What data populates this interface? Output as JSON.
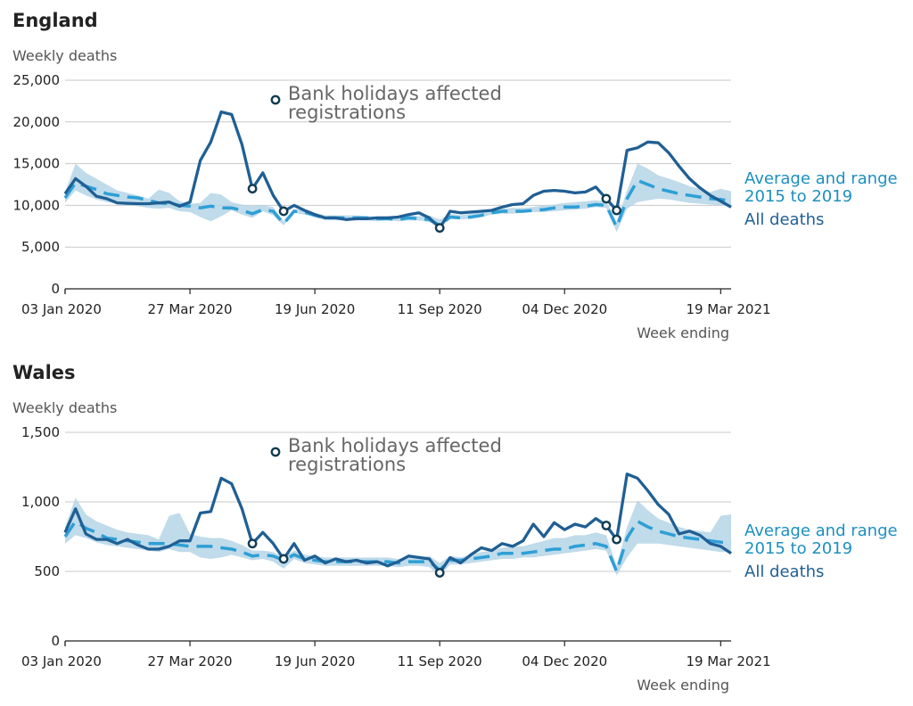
{
  "chart_data": [
    {
      "type": "line",
      "title": "England",
      "ylabel": "Weekly deaths",
      "xlabel": "Week ending",
      "ylim": [
        0,
        25000
      ],
      "yticks": [
        "0",
        "5,000",
        "10,000",
        "15,000",
        "20,000",
        "25,000"
      ],
      "ytick_values": [
        0,
        5000,
        10000,
        15000,
        20000,
        25000
      ],
      "xticks": [
        "03 Jan 2020",
        "27 Mar 2020",
        "19 Jun 2020",
        "11 Sep 2020",
        "04 Dec 2020",
        "19 Mar 2021"
      ],
      "xtick_weeks": [
        0,
        12,
        24,
        36,
        48,
        63
      ],
      "annotation": "Bank holidays affected registrations",
      "series": [
        {
          "name": "All deaths",
          "values": [
            11400,
            13200,
            12300,
            11100,
            10800,
            10300,
            10250,
            10200,
            10200,
            10300,
            10400,
            9900,
            10400,
            15400,
            17600,
            21200,
            20900,
            17300,
            12000,
            13900,
            11200,
            9300,
            10000,
            9400,
            8900,
            8500,
            8500,
            8300,
            8400,
            8400,
            8500,
            8500,
            8600,
            8900,
            9100,
            8500,
            7300,
            9300,
            9100,
            9200,
            9300,
            9400,
            9800,
            10100,
            10200,
            11200,
            11700,
            11800,
            11700,
            11500,
            11600,
            12200,
            10800,
            9400,
            16600,
            16900,
            17600,
            17500,
            16300,
            14700,
            13200,
            12100,
            11200,
            10500,
            9800
          ]
        },
        {
          "name": "Average and range 2015 to 2019",
          "values": [
            10900,
            12700,
            12300,
            11900,
            11400,
            11200,
            11000,
            10900,
            10600,
            10300,
            10200,
            10000,
            9900,
            9700,
            9900,
            9700,
            9700,
            9400,
            9000,
            9500,
            9300,
            7800,
            9300,
            9200,
            8800,
            8500,
            8500,
            8500,
            8500,
            8500,
            8400,
            8400,
            8300,
            8500,
            8400,
            8300,
            7600,
            8600,
            8500,
            8600,
            8800,
            9100,
            9300,
            9300,
            9300,
            9400,
            9500,
            9700,
            9800,
            9800,
            9900,
            10100,
            10000,
            7400,
            10800,
            13000,
            12500,
            12000,
            11700,
            11400,
            11200,
            11000,
            10800,
            10700,
            10500
          ],
          "range_low": [
            10300,
            11800,
            11200,
            10700,
            10400,
            10200,
            10000,
            9900,
            9700,
            9600,
            9700,
            9300,
            9200,
            8600,
            8100,
            8700,
            9400,
            8900,
            8500,
            9300,
            8800,
            7600,
            9100,
            8900,
            8600,
            8200,
            8200,
            8200,
            8200,
            8200,
            8100,
            8200,
            8100,
            8200,
            8200,
            8000,
            7400,
            8400,
            8300,
            8400,
            8600,
            8900,
            9000,
            9000,
            9100,
            9200,
            9200,
            9300,
            9400,
            9500,
            9600,
            9800,
            9700,
            6800,
            9600,
            10400,
            10600,
            10800,
            10700,
            10500,
            10300,
            10200,
            10100,
            10000,
            9900
          ],
          "range_high": [
            11600,
            15000,
            13900,
            13200,
            12500,
            11800,
            11500,
            11200,
            10800,
            11900,
            11500,
            10500,
            10200,
            10300,
            11500,
            11300,
            10400,
            10100,
            9900,
            10000,
            9800,
            8100,
            9500,
            9500,
            9100,
            8800,
            8800,
            8800,
            8800,
            8700,
            8700,
            8700,
            8600,
            8800,
            8700,
            8800,
            8300,
            9000,
            8800,
            9000,
            9200,
            9500,
            9600,
            9700,
            9700,
            9800,
            10000,
            10100,
            10300,
            10400,
            10500,
            10600,
            10500,
            8000,
            11800,
            15000,
            14400,
            13600,
            13200,
            12800,
            12300,
            12000,
            11600,
            12000,
            11700
          ]
        }
      ],
      "bank_holiday_points": [
        [
          18,
          12000
        ],
        [
          21,
          9300
        ],
        [
          36,
          7300
        ],
        [
          52,
          10800
        ],
        [
          53,
          9400
        ]
      ]
    },
    {
      "type": "line",
      "title": "Wales",
      "ylabel": "Weekly deaths",
      "xlabel": "Week ending",
      "ylim": [
        0,
        1500
      ],
      "yticks": [
        "0",
        "500",
        "1,000",
        "1,500"
      ],
      "ytick_values": [
        0,
        500,
        1000,
        1500
      ],
      "xticks": [
        "03 Jan 2020",
        "27 Mar 2020",
        "19 Jun 2020",
        "11 Sep 2020",
        "04 Dec 2020",
        "19 Mar 2021"
      ],
      "xtick_weeks": [
        0,
        12,
        24,
        36,
        48,
        63
      ],
      "annotation": "Bank holidays affected registrations",
      "series": [
        {
          "name": "All deaths",
          "values": [
            780,
            950,
            770,
            730,
            730,
            700,
            730,
            690,
            660,
            660,
            680,
            720,
            720,
            920,
            930,
            1170,
            1130,
            950,
            700,
            780,
            700,
            590,
            700,
            580,
            610,
            560,
            590,
            570,
            580,
            560,
            570,
            540,
            570,
            610,
            600,
            590,
            490,
            600,
            560,
            620,
            670,
            650,
            700,
            680,
            720,
            840,
            750,
            850,
            800,
            840,
            820,
            880,
            830,
            730,
            1200,
            1170,
            1080,
            980,
            910,
            770,
            790,
            760,
            700,
            680,
            630
          ]
        },
        {
          "name": "Average and range 2015 to 2019",
          "values": [
            750,
            860,
            810,
            780,
            740,
            730,
            720,
            710,
            700,
            700,
            700,
            690,
            680,
            680,
            680,
            670,
            660,
            640,
            610,
            620,
            610,
            580,
            620,
            590,
            580,
            570,
            570,
            570,
            570,
            570,
            570,
            570,
            560,
            570,
            570,
            570,
            510,
            580,
            580,
            590,
            600,
            610,
            630,
            630,
            630,
            640,
            650,
            660,
            660,
            680,
            690,
            700,
            680,
            500,
            740,
            860,
            820,
            790,
            770,
            750,
            740,
            730,
            720,
            710,
            700
          ],
          "range_low": [
            700,
            760,
            740,
            710,
            690,
            680,
            670,
            660,
            650,
            640,
            660,
            640,
            640,
            600,
            590,
            600,
            620,
            600,
            580,
            590,
            570,
            520,
            590,
            560,
            550,
            540,
            540,
            540,
            540,
            540,
            540,
            540,
            530,
            540,
            540,
            530,
            470,
            550,
            550,
            560,
            570,
            580,
            590,
            590,
            600,
            600,
            610,
            620,
            630,
            640,
            650,
            660,
            650,
            470,
            600,
            700,
            700,
            700,
            690,
            680,
            670,
            660,
            650,
            640,
            640
          ],
          "range_low_note": "",
          "range_high": [
            820,
            1030,
            910,
            860,
            830,
            800,
            780,
            770,
            760,
            730,
            900,
            920,
            770,
            750,
            740,
            740,
            720,
            690,
            650,
            650,
            640,
            600,
            650,
            620,
            610,
            600,
            600,
            600,
            600,
            600,
            600,
            600,
            590,
            600,
            600,
            610,
            560,
            610,
            600,
            620,
            640,
            650,
            670,
            680,
            680,
            700,
            720,
            740,
            740,
            760,
            760,
            780,
            760,
            540,
            820,
            1010,
            940,
            880,
            850,
            820,
            800,
            790,
            780,
            900,
            910
          ]
        }
      ],
      "bank_holiday_points": [
        [
          18,
          700
        ],
        [
          21,
          590
        ],
        [
          36,
          490
        ],
        [
          52,
          830
        ],
        [
          53,
          730
        ]
      ]
    }
  ]
}
